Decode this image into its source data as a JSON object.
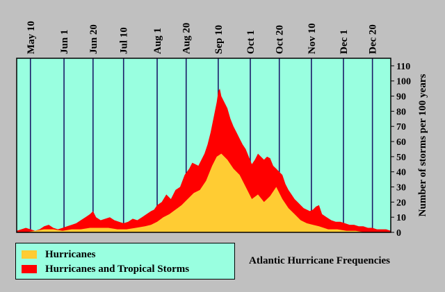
{
  "chart_data": {
    "type": "area",
    "title": "Atlantic Hurricane Frequencies",
    "ylabel": "Number of storms per 100 years",
    "ylim": [
      0,
      115
    ],
    "xlim": [
      "May 1",
      "Dec 31"
    ],
    "xaxis_position": "top",
    "yaxis_position": "right",
    "grid": "vertical lines at x tick labels",
    "plot_background": "#99ffe0",
    "x_tick_labels": [
      {
        "label": "May 10",
        "day": 9
      },
      {
        "label": "Jun 1",
        "day": 31
      },
      {
        "label": "Jun 20",
        "day": 50
      },
      {
        "label": "Jul 10",
        "day": 70
      },
      {
        "label": "Aug 1",
        "day": 92
      },
      {
        "label": "Aug 20",
        "day": 111
      },
      {
        "label": "Sep 10",
        "day": 132
      },
      {
        "label": "Oct 1",
        "day": 153
      },
      {
        "label": "Oct 20",
        "day": 172
      },
      {
        "label": "Nov 10",
        "day": 193
      },
      {
        "label": "Dec 1",
        "day": 214
      },
      {
        "label": "Dec 20",
        "day": 233
      }
    ],
    "y_tick_labels": [
      "0",
      "10",
      "20",
      "30",
      "40",
      "50",
      "60",
      "70",
      "80",
      "90",
      "100",
      "110"
    ],
    "legend": {
      "position": "bottom-left",
      "entries": [
        {
          "name": "Hurricanes",
          "color": "#ffcc33"
        },
        {
          "name": "Hurricanes and Tropical Storms",
          "color": "#ff0000"
        }
      ]
    },
    "x_unit": "day since May 1",
    "series": [
      {
        "name": "Hurricanes and Tropical Storms",
        "color": "#ff0000",
        "x": [
          0,
          3,
          6,
          9,
          12,
          15,
          18,
          21,
          24,
          27,
          30,
          33,
          36,
          39,
          42,
          45,
          48,
          50,
          52,
          55,
          58,
          61,
          64,
          67,
          70,
          73,
          76,
          79,
          82,
          85,
          88,
          90,
          92,
          95,
          98,
          101,
          104,
          107,
          110,
          113,
          115,
          117,
          119,
          121,
          123,
          125,
          127,
          129,
          131,
          132,
          133,
          134,
          136,
          138,
          140,
          142,
          144,
          146,
          148,
          150,
          152,
          154,
          156,
          158,
          160,
          162,
          164,
          166,
          168,
          170,
          172,
          174,
          176,
          178,
          180,
          182,
          184,
          186,
          188,
          190,
          192,
          194,
          196,
          198,
          200,
          203,
          206,
          209,
          212,
          215,
          218,
          221,
          224,
          227,
          230,
          233,
          236,
          239,
          242,
          245
        ],
        "values": [
          1,
          2,
          3,
          2,
          1,
          2,
          4,
          5,
          3,
          2,
          3,
          4,
          5,
          6,
          8,
          10,
          12,
          14,
          10,
          8,
          9,
          10,
          8,
          7,
          6,
          7,
          9,
          8,
          10,
          12,
          14,
          15,
          18,
          20,
          25,
          22,
          28,
          30,
          38,
          42,
          46,
          45,
          44,
          48,
          52,
          58,
          66,
          76,
          86,
          93,
          95,
          90,
          86,
          82,
          75,
          70,
          66,
          62,
          58,
          55,
          50,
          45,
          48,
          52,
          50,
          48,
          50,
          49,
          44,
          42,
          40,
          38,
          32,
          28,
          25,
          22,
          20,
          18,
          16,
          15,
          14,
          15,
          17,
          18,
          12,
          10,
          8,
          7,
          7,
          6,
          5,
          5,
          4,
          4,
          3,
          3,
          2,
          2,
          2,
          1
        ]
      },
      {
        "name": "Hurricanes",
        "color": "#ffcc33",
        "x": [
          0,
          6,
          12,
          18,
          24,
          30,
          36,
          42,
          48,
          54,
          60,
          66,
          72,
          78,
          84,
          88,
          92,
          96,
          100,
          104,
          108,
          112,
          116,
          120,
          124,
          128,
          131,
          134,
          138,
          142,
          146,
          150,
          154,
          158,
          162,
          166,
          170,
          174,
          178,
          182,
          186,
          190,
          194,
          198,
          204,
          210,
          216,
          222,
          228,
          234,
          240,
          245
        ],
        "values": [
          0,
          0,
          1,
          2,
          2,
          1,
          2,
          2,
          3,
          3,
          3,
          2,
          2,
          3,
          4,
          5,
          7,
          10,
          12,
          15,
          18,
          22,
          26,
          28,
          34,
          44,
          50,
          52,
          48,
          42,
          38,
          30,
          22,
          25,
          20,
          24,
          30,
          22,
          16,
          12,
          8,
          6,
          5,
          4,
          2,
          2,
          1,
          1,
          0,
          0,
          0,
          0
        ]
      }
    ]
  }
}
